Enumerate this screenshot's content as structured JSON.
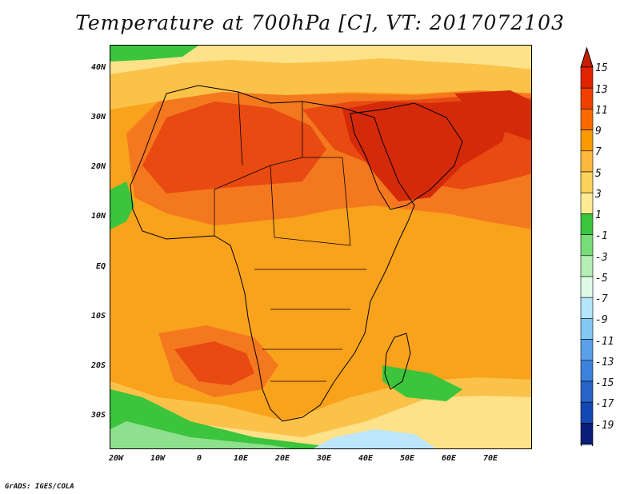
{
  "title": "Temperature at 700hPa [C], VT: 2017072103",
  "credit": "GrADS: IGES/COLA",
  "lat_labels": [
    "40N",
    "30N",
    "20N",
    "10N",
    "EQ",
    "10S",
    "20S",
    "30S"
  ],
  "lon_labels": [
    "20W",
    "10W",
    "0",
    "10E",
    "20E",
    "30E",
    "40E",
    "50E",
    "60E",
    "70E"
  ],
  "colorbar": {
    "labels": [
      "15",
      "13",
      "11",
      "9",
      "7",
      "5",
      "3",
      "1",
      "-1",
      "-3",
      "-5",
      "-7",
      "-9",
      "-11",
      "-13",
      "-15",
      "-17",
      "-19"
    ],
    "colors": [
      "#e02400",
      "#f04000",
      "#f86a00",
      "#f99a00",
      "#fbba3c",
      "#fcd35a",
      "#fbeb94",
      "#3cc43c",
      "#78dc78",
      "#b4f0b4",
      "#e0fae8",
      "#b4e6fa",
      "#82c8f5",
      "#5aa0e6",
      "#3c82dc",
      "#2864c8",
      "#1446b4",
      "#0a1e78"
    ],
    "top_cap_color": "#c81e00",
    "bottom_cap_color": "#e6e0ff"
  },
  "palette": {
    "ocean_base": "#f9a21c",
    "warm": "#f4781e",
    "hot": "#e84a12",
    "hottest": "#d42a0a",
    "mild": "#fbc24a",
    "cool": "#fde28a",
    "green": "#3cc43c",
    "light_green": "#8ee08e",
    "pale_blue": "#bde6fa"
  }
}
